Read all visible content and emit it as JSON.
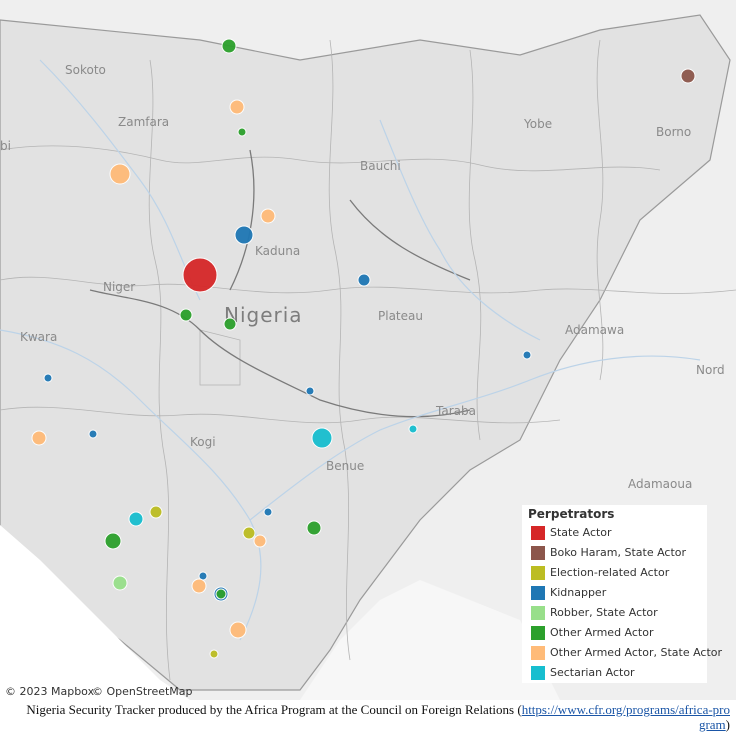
{
  "map": {
    "place_labels": [
      "Sokoto",
      "Zamfara",
      "bi",
      "Yobe",
      "Borno",
      "Bauchi",
      "Kaduna",
      "Niger",
      "Plateau",
      "Kwara",
      "Adamawa",
      "Nord",
      "Taraba",
      "Kogi",
      "Benue",
      "Adamaoua"
    ],
    "country_label": "Nigeria",
    "attribution": [
      "© 2023 Mapbox",
      "© OpenStreetMap"
    ]
  },
  "legend": {
    "title": "Perpetrators",
    "items": [
      {
        "label": "State Actor",
        "color": "#d62728"
      },
      {
        "label": "Boko Haram, State Actor",
        "color": "#8c564b"
      },
      {
        "label": "Election-related Actor",
        "color": "#bcbd22"
      },
      {
        "label": "Kidnapper",
        "color": "#1f77b4"
      },
      {
        "label": "Robber, State Actor",
        "color": "#98df8a"
      },
      {
        "label": "Other Armed Actor",
        "color": "#2ca02c"
      },
      {
        "label": "Other Armed Actor, State Actor",
        "color": "#ffbb78"
      },
      {
        "label": "Sectarian Actor",
        "color": "#17becf"
      }
    ]
  },
  "footer": {
    "text": "Nigeria Security Tracker produced by the Africa Program at the Council on Foreign Relations (",
    "link": "https://www.cfr.org/programs/africa-program",
    "close": ")"
  }
}
